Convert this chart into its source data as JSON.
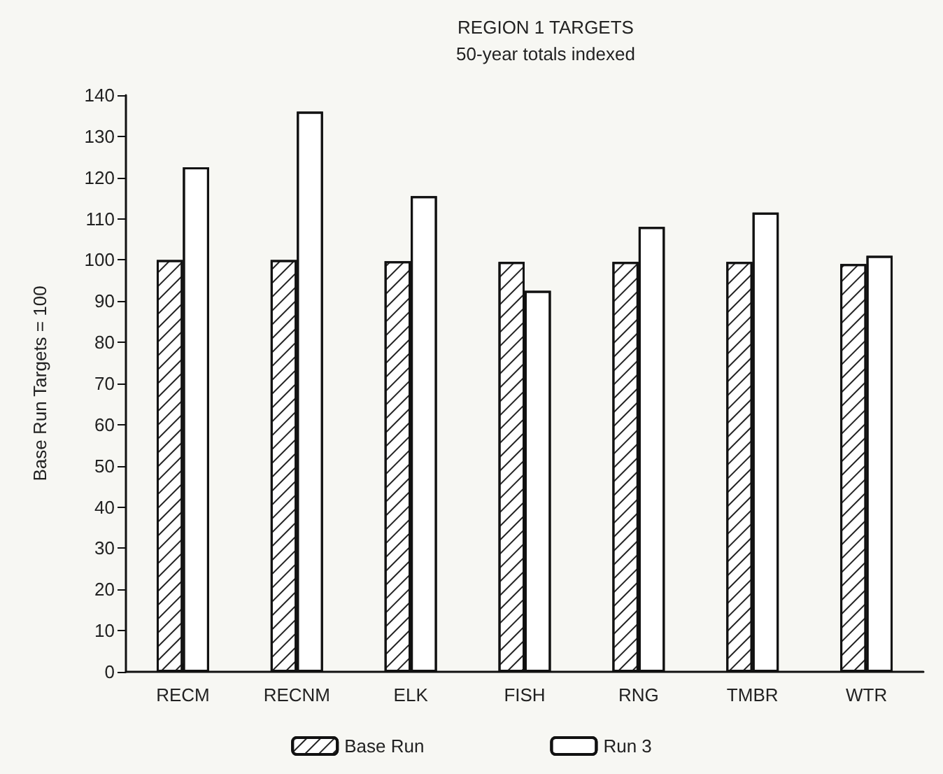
{
  "chart_data": {
    "type": "bar",
    "title": "REGION 1 TARGETS",
    "subtitle": "50-year totals indexed",
    "ylabel": "Base Run Targets = 100",
    "categories": [
      "RECM",
      "RECNM",
      "ELK",
      "FISH",
      "RNG",
      "TMBR",
      "WTR"
    ],
    "series": [
      {
        "name": "Base Run",
        "color": "#ffffff",
        "values": [
          100,
          100,
          99.7,
          99.5,
          99.5,
          99.5,
          99
        ]
      },
      {
        "name": "Run 3",
        "color": "#ffffff",
        "values": [
          122.5,
          136,
          115.5,
          92.5,
          108,
          111.5,
          101
        ]
      }
    ],
    "ylim": [
      0,
      140
    ],
    "yticks": [
      0,
      10,
      20,
      30,
      40,
      50,
      60,
      70,
      80,
      90,
      100,
      110,
      120,
      130,
      140
    ],
    "grid": false,
    "legend": "bottom"
  }
}
